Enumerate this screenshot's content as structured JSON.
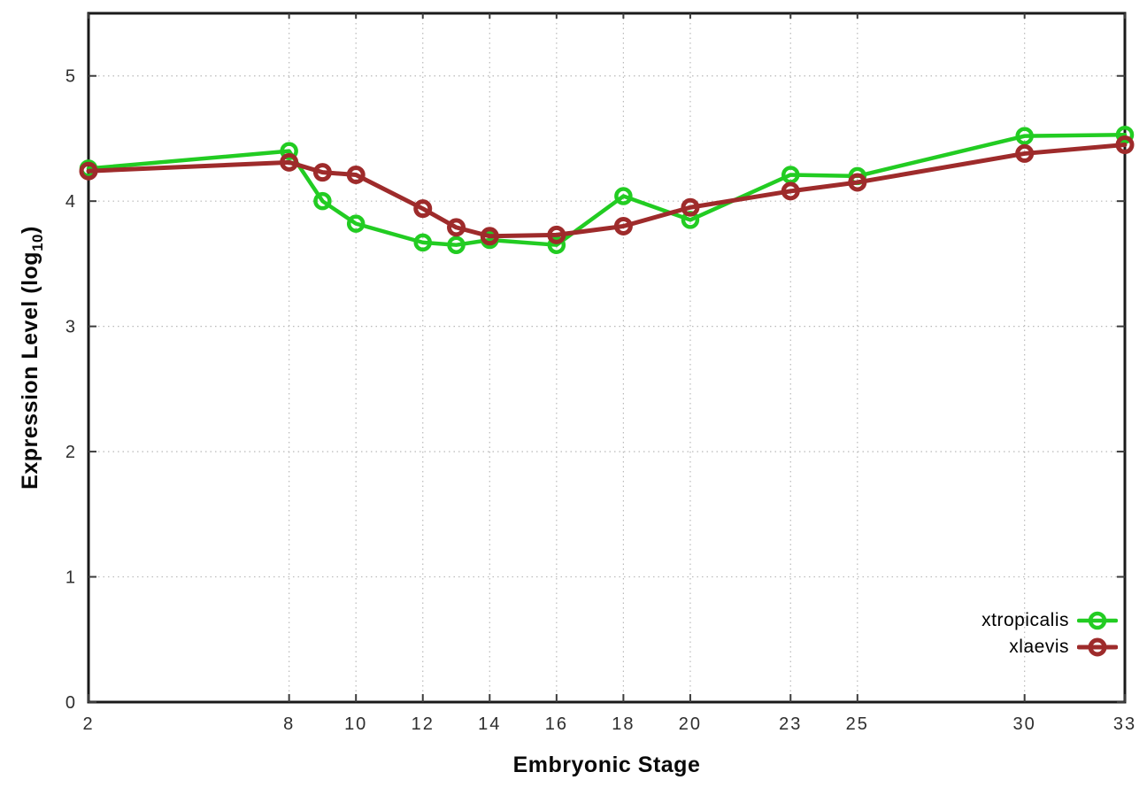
{
  "chart_data": {
    "type": "line",
    "title": "",
    "xlabel": "Embryonic Stage",
    "ylabel": "Expression Level (log10)",
    "ylabel_parts": {
      "prefix": "Expression Level (log",
      "sub": "10",
      "suffix": ")"
    },
    "x": [
      2,
      8,
      9,
      10,
      12,
      13,
      14,
      16,
      18,
      20,
      23,
      25,
      30,
      33
    ],
    "xticks": [
      2,
      8,
      10,
      12,
      14,
      16,
      18,
      20,
      23,
      25,
      30,
      33
    ],
    "yticks": [
      0,
      1,
      2,
      3,
      4,
      5
    ],
    "xlim": [
      2,
      33
    ],
    "ylim": [
      0,
      5.5
    ],
    "grid": true,
    "grid_style": "dotted",
    "legend_position": "inside-bottom-right",
    "marker": "open-circle",
    "colors": {
      "xtropicalis": "#22cc22",
      "xlaevis": "#9e2b2b"
    },
    "series": [
      {
        "name": "xtropicalis",
        "color": "#22cc22",
        "line_width": 4.5,
        "values": [
          4.26,
          4.4,
          4.0,
          3.82,
          3.67,
          3.65,
          3.69,
          3.65,
          4.04,
          3.85,
          4.21,
          4.2,
          4.52,
          4.53
        ]
      },
      {
        "name": "xlaevis",
        "color": "#9e2b2b",
        "line_width": 5,
        "values": [
          4.24,
          4.31,
          4.23,
          4.21,
          3.94,
          3.79,
          3.72,
          3.73,
          3.8,
          3.95,
          4.08,
          4.15,
          4.38,
          4.45
        ]
      }
    ]
  }
}
